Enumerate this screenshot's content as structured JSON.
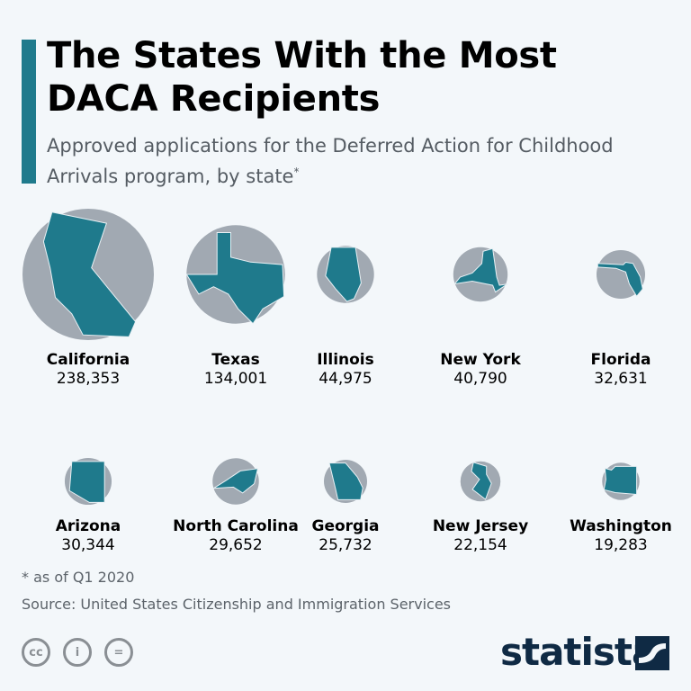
{
  "title": "The States With the Most DACA Recipients",
  "subtitle": "Approved applications for the Deferred Action for Childhood Arrivals program, by state",
  "subtitle_mark": "*",
  "footnote": "* as of Q1 2020",
  "source": "Source: United States Citizenship and Immigration Services",
  "brand": "statista",
  "colors": {
    "accent": "#1f7a8c",
    "bubble": "#a1a9b2",
    "state": "#1f7a8c",
    "background": "#f3f7fa"
  },
  "license_icons": [
    "cc-icon",
    "attribution-icon",
    "no-derivatives-icon"
  ],
  "chart_data": {
    "type": "bubble",
    "categories": [
      "California",
      "Texas",
      "Illinois",
      "New York",
      "Florida",
      "Arizona",
      "North Carolina",
      "Georgia",
      "New Jersey",
      "Washington"
    ],
    "values": [
      238353,
      134001,
      44975,
      40790,
      32631,
      30344,
      29652,
      25732,
      22154,
      19283
    ],
    "labels": [
      "238,353",
      "134,001",
      "44,975",
      "40,790",
      "32,631",
      "30,344",
      "29,652",
      "25,732",
      "22,154",
      "19,283"
    ]
  }
}
